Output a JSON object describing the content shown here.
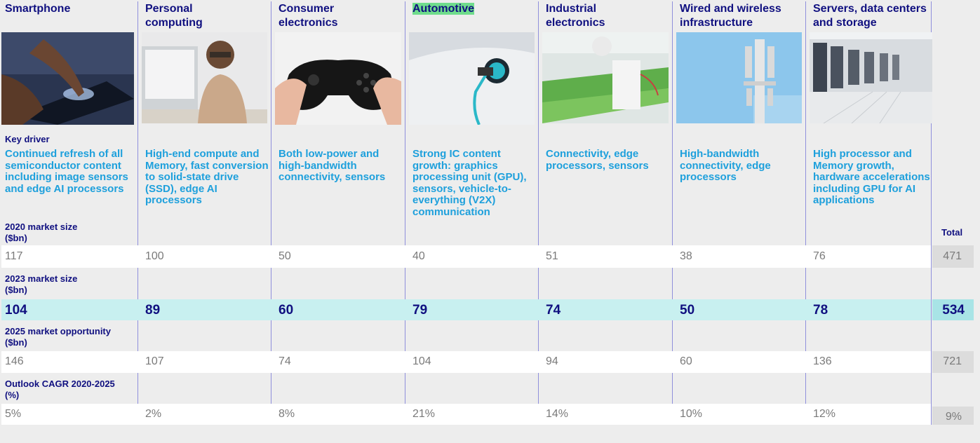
{
  "columns": [
    {
      "name": "Smartphone",
      "driver": "Continued refresh of all semiconductor content including image sensors and edge AI processors",
      "v2020": "117",
      "v2023": "104",
      "v2025": "146",
      "cagr": "5%"
    },
    {
      "name": "Personal computing",
      "driver": "High-end compute and Memory, fast conversion to solid-state drive (SSD), edge AI processors",
      "v2020": "100",
      "v2023": "89",
      "v2025": "107",
      "cagr": "2%"
    },
    {
      "name": "Consumer electronics",
      "driver": "Both low-power and high-bandwidth connectivity, sensors",
      "v2020": "50",
      "v2023": "60",
      "v2025": "74",
      "cagr": "8%"
    },
    {
      "name": "Automotive",
      "driver": "Strong IC content growth: graphics processing unit (GPU), sensors, vehicle-to-everything (V2X) communication",
      "v2020": "40",
      "v2023": "79",
      "v2025": "104",
      "cagr": "21%"
    },
    {
      "name": "Industrial electronics",
      "driver": "Connectivity, edge processors, sensors",
      "v2020": "51",
      "v2023": "74",
      "v2025": "94",
      "cagr": "14%"
    },
    {
      "name": "Wired and wireless infrastructure",
      "driver": "High-bandwidth connectivity, edge processors",
      "v2020": "38",
      "v2023": "50",
      "v2025": "60",
      "cagr": "10%"
    },
    {
      "name": "Servers, data centers and storage",
      "driver": "High processor and Memory growth, hardware accelerations including GPU for AI applications",
      "v2020": "76",
      "v2023": "78",
      "v2025": "136",
      "cagr": "12%"
    }
  ],
  "labels": {
    "key_driver": "Key driver",
    "size2020": "2020 market size ($bn)",
    "size2023": "2023 market size ($bn)",
    "opp2025": "2025 market opportunity ($bn)",
    "cagr": "Outlook CAGR 2020-2025 (%)",
    "total": "Total"
  },
  "totals": {
    "v2020": "471",
    "v2023": "534",
    "v2025": "721",
    "cagr": "9%"
  },
  "colors": {
    "navy": "#101080",
    "cyan": "#1ea0dc",
    "teal_row": "#c8f0f0",
    "highlight": "#6fdc8c"
  }
}
